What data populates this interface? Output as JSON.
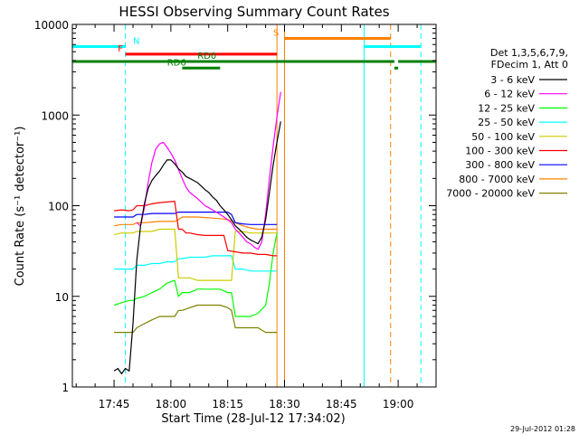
{
  "chart_data": {
    "type": "line",
    "title": "HESSI Observing Summary Count Rates",
    "xlabel": "Start Time (28-Jul-12 17:34:02)",
    "ylabel": "Count Rate (s⁻¹ detector⁻¹)",
    "y_scale": "log",
    "ylim": [
      1,
      10000
    ],
    "xlim": [
      "17:34",
      "19:10"
    ],
    "x_ticks": [
      {
        "t": "17:45",
        "label": "17:45"
      },
      {
        "t": "18:00",
        "label": "18:00"
      },
      {
        "t": "18:15",
        "label": "18:15"
      },
      {
        "t": "18:30",
        "label": "18:30"
      },
      {
        "t": "18:45",
        "label": "18:45"
      },
      {
        "t": "19:00",
        "label": "19:00"
      }
    ],
    "y_ticks": [
      {
        "v": 1,
        "label": "1"
      },
      {
        "v": 10,
        "label": "10"
      },
      {
        "v": 100,
        "label": "100"
      },
      {
        "v": 1000,
        "label": "1000"
      },
      {
        "v": 10000,
        "label": "10000"
      }
    ],
    "legend": {
      "placement": "right",
      "header": [
        "Det 1,3,5,6,7,9,",
        "FDecim 1, Att 0"
      ],
      "entries": [
        {
          "label": "3 - 6 keV",
          "color": "#000000"
        },
        {
          "label": "6 - 12 keV",
          "color": "#ff00ff"
        },
        {
          "label": "12 - 25 keV",
          "color": "#00ff00"
        },
        {
          "label": "25 - 50 keV",
          "color": "#00ffff"
        },
        {
          "label": "50 - 100 keV",
          "color": "#cccc00"
        },
        {
          "label": "100 - 300 keV",
          "color": "#ff0000"
        },
        {
          "label": "300 - 800 keV",
          "color": "#0000ff"
        },
        {
          "label": "800 - 7000 keV",
          "color": "#ff8000"
        },
        {
          "label": "7000 - 20000 keV",
          "color": "#808000"
        }
      ]
    },
    "series": [
      {
        "color": "#000000",
        "t": [
          "17:45",
          "17:46",
          "17:47",
          "17:48",
          "17:49",
          "17:50",
          "17:51",
          "17:52",
          "17:53",
          "17:54",
          "17:55",
          "17:56",
          "17:57",
          "17:58",
          "17:59",
          "18:00",
          "18:01",
          "18:02",
          "18:03",
          "18:04",
          "18:05",
          "18:06",
          "18:07",
          "18:08",
          "18:09",
          "18:10",
          "18:11",
          "18:12",
          "18:13",
          "18:14",
          "18:15",
          "18:16",
          "18:17",
          "18:18",
          "18:19",
          "18:20",
          "18:21",
          "18:22",
          "18:23",
          "18:24",
          "18:25",
          "18:26",
          "18:27",
          "18:28",
          "18:29"
        ],
        "values": [
          1.5,
          1.6,
          1.4,
          1.6,
          1.5,
          5,
          25,
          60,
          105,
          155,
          190,
          215,
          240,
          280,
          320,
          320,
          290,
          255,
          235,
          210,
          200,
          190,
          180,
          165,
          150,
          140,
          125,
          115,
          100,
          90,
          80,
          70,
          60,
          55,
          50,
          45,
          42,
          40,
          38,
          45,
          70,
          140,
          280,
          500,
          850
        ]
      },
      {
        "color": "#ff00ff",
        "t": [
          "17:51",
          "17:52",
          "17:53",
          "17:54",
          "17:55",
          "17:56",
          "17:57",
          "17:58",
          "17:59",
          "18:00",
          "18:01",
          "18:02",
          "18:03",
          "18:04",
          "18:05",
          "18:06",
          "18:07",
          "18:08",
          "18:09",
          "18:10",
          "18:11",
          "18:12",
          "18:13",
          "18:14",
          "18:15",
          "18:16",
          "18:17",
          "18:18",
          "18:19",
          "18:20",
          "18:21",
          "18:22",
          "18:23",
          "18:24",
          "18:25",
          "18:26",
          "18:27",
          "18:28",
          "18:29"
        ],
        "values": [
          65,
          60,
          95,
          180,
          300,
          420,
          480,
          500,
          440,
          380,
          320,
          250,
          200,
          160,
          140,
          130,
          120,
          110,
          100,
          95,
          90,
          85,
          80,
          75,
          70,
          65,
          55,
          50,
          45,
          40,
          38,
          35,
          33,
          40,
          80,
          200,
          450,
          950,
          1800
        ]
      },
      {
        "color": "#ff0000",
        "t": [
          "17:45",
          "17:47",
          "17:49",
          "17:50",
          "17:51",
          "17:53",
          "17:55",
          "17:57",
          "17:59",
          "18:01",
          "18:02",
          "18:03",
          "18:04",
          "18:05",
          "18:07",
          "18:09",
          "18:11",
          "18:13",
          "18:14",
          "18:15",
          "18:17",
          "18:19",
          "18:21",
          "18:23",
          "18:25",
          "18:27",
          "18:28"
        ],
        "values": [
          88,
          90,
          88,
          90,
          100,
          100,
          105,
          108,
          110,
          112,
          55,
          55,
          50,
          50,
          48,
          47,
          47,
          47,
          47,
          32,
          31,
          30,
          30,
          29,
          29,
          28,
          28
        ]
      },
      {
        "color": "#0000ff",
        "t": [
          "17:45",
          "17:47",
          "17:49",
          "17:50",
          "17:51",
          "17:53",
          "17:55",
          "17:57",
          "17:59",
          "18:01",
          "18:02",
          "18:03",
          "18:05",
          "18:07",
          "18:09",
          "18:11",
          "18:13",
          "18:15",
          "18:16",
          "18:17",
          "18:19",
          "18:21",
          "18:23",
          "18:25",
          "18:27",
          "18:28"
        ],
        "values": [
          75,
          75,
          75,
          75,
          80,
          80,
          82,
          82,
          82,
          82,
          85,
          85,
          85,
          85,
          85,
          85,
          85,
          85,
          80,
          65,
          63,
          62,
          62,
          62,
          62,
          62
        ]
      },
      {
        "color": "#ff8000",
        "t": [
          "17:45",
          "17:47",
          "17:49",
          "17:50",
          "17:51",
          "17:53",
          "17:55",
          "17:57",
          "17:59",
          "18:01",
          "18:02",
          "18:03",
          "18:05",
          "18:07",
          "18:09",
          "18:11",
          "18:13",
          "18:15",
          "18:16",
          "18:17",
          "18:19",
          "18:21",
          "18:23",
          "18:25",
          "18:27",
          "18:28"
        ],
        "values": [
          60,
          62,
          62,
          62,
          65,
          65,
          66,
          67,
          67,
          67,
          70,
          75,
          75,
          75,
          74,
          73,
          72,
          70,
          68,
          65,
          60,
          57,
          55,
          55,
          55,
          55
        ]
      },
      {
        "color": "#cccc00",
        "t": [
          "17:45",
          "17:47",
          "17:49",
          "17:50",
          "17:51",
          "17:53",
          "17:55",
          "17:57",
          "17:59",
          "18:01",
          "18:02",
          "18:03",
          "18:05",
          "18:07",
          "18:09",
          "18:11",
          "18:13",
          "18:15",
          "18:16",
          "18:17",
          "18:19",
          "18:21",
          "18:23",
          "18:25",
          "18:27",
          "18:28"
        ],
        "values": [
          48,
          50,
          50,
          50,
          52,
          52,
          52,
          55,
          55,
          55,
          16,
          16,
          16,
          15,
          15,
          15,
          15,
          15,
          15,
          52,
          52,
          50,
          50,
          50,
          50,
          50
        ]
      },
      {
        "color": "#00ffff",
        "t": [
          "17:45",
          "17:47",
          "17:49",
          "17:50",
          "17:51",
          "17:53",
          "17:55",
          "17:57",
          "17:59",
          "18:01",
          "18:02",
          "18:03",
          "18:05",
          "18:07",
          "18:09",
          "18:11",
          "18:13",
          "18:15",
          "18:16",
          "18:17",
          "18:19",
          "18:21",
          "18:23",
          "18:25",
          "18:27",
          "18:28"
        ],
        "values": [
          20,
          20,
          20,
          20,
          22,
          22,
          23,
          23,
          24,
          24,
          26,
          26,
          27,
          27,
          27,
          28,
          28,
          28,
          28,
          20,
          20,
          19,
          19,
          19,
          19,
          19
        ]
      },
      {
        "color": "#00ff00",
        "t": [
          "17:45",
          "17:47",
          "17:49",
          "17:50",
          "17:51",
          "17:53",
          "17:55",
          "17:57",
          "17:59",
          "18:01",
          "18:02",
          "18:03",
          "18:05",
          "18:07",
          "18:09",
          "18:11",
          "18:13",
          "18:15",
          "18:16",
          "18:17",
          "18:19",
          "18:21",
          "18:23",
          "18:25",
          "18:26",
          "18:27",
          "18:28"
        ],
        "values": [
          8,
          8.5,
          9,
          9,
          9.5,
          10,
          11,
          12,
          14,
          15,
          10,
          11,
          11,
          12,
          12,
          12,
          12,
          11,
          11,
          6,
          6,
          6,
          6.5,
          8,
          14,
          30,
          50
        ]
      },
      {
        "color": "#808000",
        "t": [
          "17:45",
          "17:47",
          "17:49",
          "17:50",
          "17:51",
          "17:53",
          "17:55",
          "17:57",
          "17:59",
          "18:01",
          "18:02",
          "18:03",
          "18:05",
          "18:07",
          "18:09",
          "18:11",
          "18:13",
          "18:15",
          "18:16",
          "18:17",
          "18:19",
          "18:21",
          "18:23",
          "18:25",
          "18:27",
          "18:28"
        ],
        "values": [
          4,
          4,
          4,
          4,
          4.5,
          5,
          5.5,
          6,
          6,
          6,
          7,
          7,
          7.5,
          8,
          8,
          8,
          8,
          7.5,
          7,
          4.5,
          4.5,
          4.5,
          4.5,
          4,
          4,
          4
        ]
      }
    ],
    "vertical_lines": [
      {
        "t": "17:34",
        "color": "#00ffff",
        "style": "solid"
      },
      {
        "t": "17:48",
        "color": "#00ffff",
        "style": "dashed"
      },
      {
        "t": "18:28",
        "color": "#ff8000",
        "style": "solid"
      },
      {
        "t": "18:30",
        "color": "#ff8000",
        "style": "solid"
      },
      {
        "t": "18:51",
        "color": "#00ffff",
        "style": "solid"
      },
      {
        "t": "18:58",
        "color": "#ff8000",
        "style": "dashed"
      },
      {
        "t": "19:06",
        "color": "#00ffff",
        "style": "dashed"
      }
    ],
    "flag_bars": [
      {
        "label": "N",
        "color": "#00ffff",
        "label_color": "#00ffff",
        "segments": [
          [
            "17:34",
            "17:48"
          ],
          [
            "18:51",
            "19:06"
          ]
        ],
        "y": 5700,
        "label_t": "17:50"
      },
      {
        "label": "S",
        "color": "#ff8000",
        "label_color": "#ff8000",
        "segments": [
          [
            "18:30",
            "18:58"
          ]
        ],
        "y": 7000,
        "label_t": "18:27"
      },
      {
        "label": "F",
        "color": "#ff0000",
        "label_color": "#ff0000",
        "segments": [
          [
            "17:48",
            "18:28"
          ]
        ],
        "y": 4700,
        "label_t": "17:46"
      },
      {
        "label": "RD0",
        "color": "#008000",
        "label_color": "#008000",
        "segments": [
          [
            "17:34",
            "18:59"
          ],
          [
            "19:00",
            "19:10"
          ]
        ],
        "y": 3900,
        "label_t": "18:07"
      },
      {
        "label": "RD6",
        "color": "#008000",
        "label_color": "#008000",
        "segments": [
          [
            "18:03",
            "18:13"
          ]
        ],
        "y": 3300,
        "label_t": "17:59"
      },
      {
        "label": "",
        "color": "#008000",
        "label_color": "#008000",
        "segments": [
          [
            "18:59",
            "19:00"
          ]
        ],
        "y": 3300,
        "label_t": "18:59"
      }
    ],
    "timestamp": "29-Jul-2012 01:28"
  }
}
